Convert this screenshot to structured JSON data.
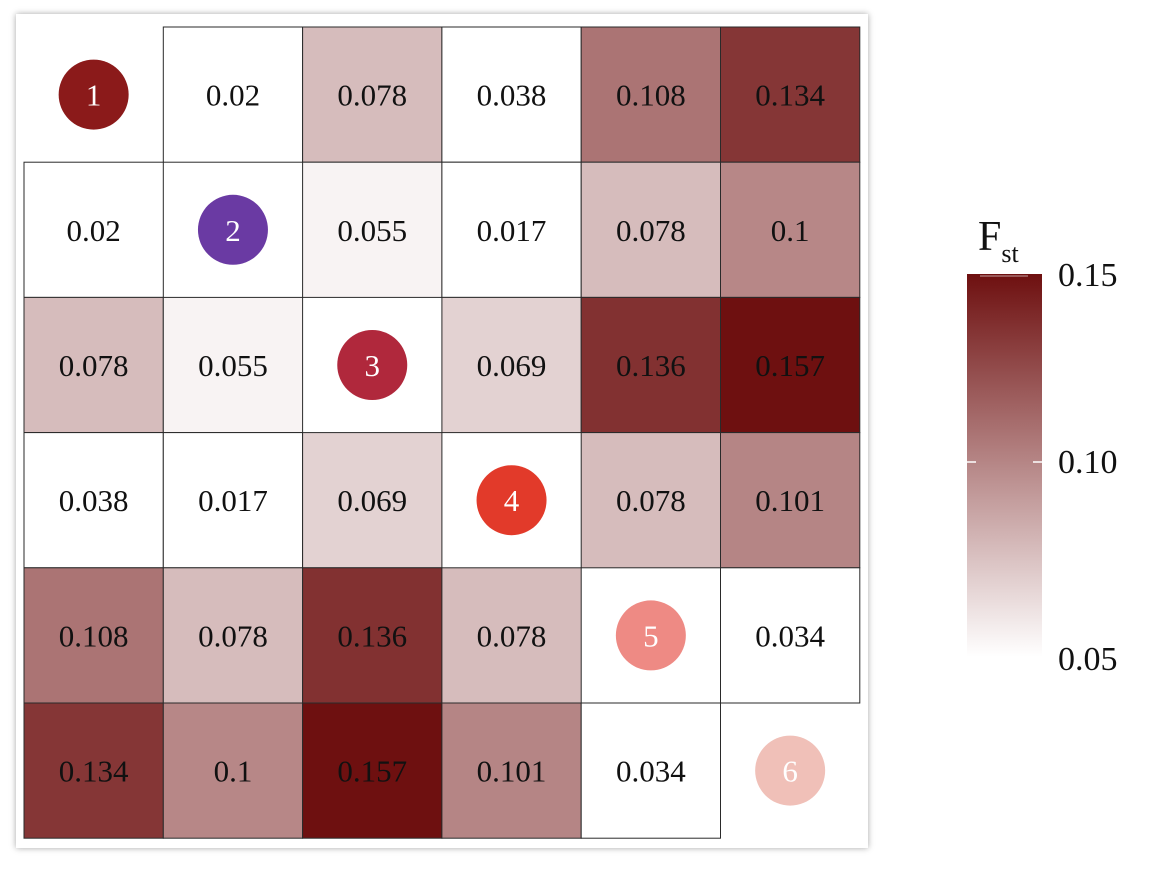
{
  "chart_data": {
    "type": "heatmap",
    "title": "",
    "row_labels": [
      "1",
      "2",
      "3",
      "4",
      "5",
      "6"
    ],
    "col_labels": [
      "1",
      "2",
      "3",
      "4",
      "5",
      "6"
    ],
    "values": [
      [
        null,
        0.02,
        0.078,
        0.038,
        0.108,
        0.134
      ],
      [
        0.02,
        null,
        0.055,
        0.017,
        0.078,
        0.1
      ],
      [
        0.078,
        0.055,
        null,
        0.069,
        0.136,
        0.157
      ],
      [
        0.038,
        0.017,
        0.069,
        null,
        0.078,
        0.101
      ],
      [
        0.108,
        0.078,
        0.136,
        0.078,
        null,
        0.034
      ],
      [
        0.134,
        0.1,
        0.157,
        0.101,
        0.034,
        null
      ]
    ],
    "value_labels": [
      [
        "",
        "0.02",
        "0.078",
        "0.038",
        "0.108",
        "0.134"
      ],
      [
        "0.02",
        "",
        "0.055",
        "0.017",
        "0.078",
        "0.1"
      ],
      [
        "0.078",
        "0.055",
        "",
        "0.069",
        "0.136",
        "0.157"
      ],
      [
        "0.038",
        "0.017",
        "0.069",
        "",
        "0.078",
        "0.101"
      ],
      [
        "0.108",
        "0.078",
        "0.136",
        "0.078",
        "",
        "0.034"
      ],
      [
        "0.134",
        "0.1",
        "0.157",
        "0.101",
        "0.034",
        ""
      ]
    ],
    "diagonal_markers": [
      {
        "label": "1",
        "color": "#8b1a1a"
      },
      {
        "label": "2",
        "color": "#6a3aa3"
      },
      {
        "label": "3",
        "color": "#b0283c"
      },
      {
        "label": "4",
        "color": "#e23a2a"
      },
      {
        "label": "5",
        "color": "#ee8a84"
      },
      {
        "label": "6",
        "color": "#f0c0b8"
      }
    ],
    "colorbar": {
      "title_main": "F",
      "title_sub": "st",
      "min": 0.05,
      "max": 0.15,
      "ticks": [
        "0.15",
        "0.10",
        "0.05"
      ],
      "color_low": "#ffffff",
      "color_high": "#6e1010"
    }
  }
}
